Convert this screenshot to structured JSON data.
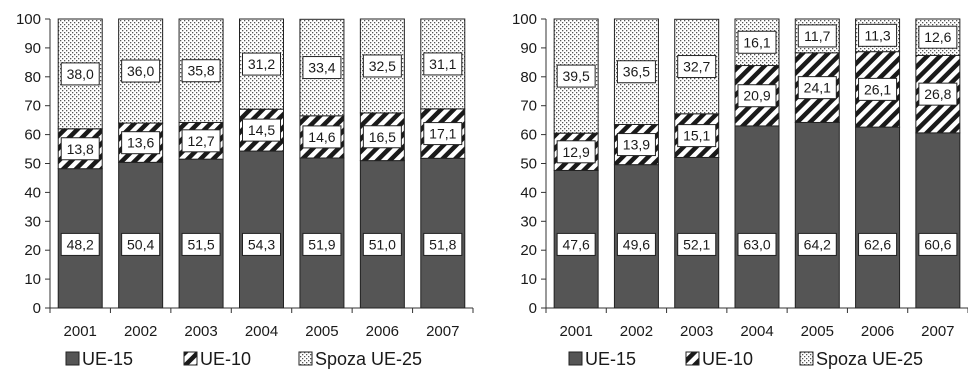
{
  "chart_data": [
    {
      "type": "bar",
      "stacked": true,
      "categories": [
        "2001",
        "2002",
        "2003",
        "2004",
        "2005",
        "2006",
        "2007"
      ],
      "series": [
        {
          "name": "UE-15",
          "values": [
            48.2,
            50.4,
            51.5,
            54.3,
            51.9,
            51.0,
            51.8
          ],
          "labels": [
            "48,2",
            "50,4",
            "51,5",
            "54,3",
            "51,9",
            "51,0",
            "51,8"
          ],
          "color": "#555555",
          "pattern": "solid"
        },
        {
          "name": "UE-10",
          "values": [
            13.8,
            13.6,
            12.7,
            14.5,
            14.6,
            16.5,
            17.1
          ],
          "labels": [
            "13,8",
            "13,6",
            "12,7",
            "14,5",
            "14,6",
            "16,5",
            "17,1"
          ],
          "color": "#1a1a1a",
          "pattern": "diagonal-hatch"
        },
        {
          "name": "Spoza UE-25",
          "values": [
            38.0,
            36.0,
            35.8,
            31.2,
            33.4,
            32.5,
            31.1
          ],
          "labels": [
            "38,0",
            "36,0",
            "35,8",
            "31,2",
            "33,4",
            "32,5",
            "31,1"
          ],
          "color": "#999999",
          "pattern": "dots"
        }
      ],
      "yticks": [
        "0",
        "10",
        "20",
        "30",
        "40",
        "50",
        "60",
        "70",
        "80",
        "90",
        "100"
      ],
      "ylim": [
        0,
        100
      ],
      "grid": false,
      "legend_position": "bottom"
    },
    {
      "type": "bar",
      "stacked": true,
      "categories": [
        "2001",
        "2002",
        "2003",
        "2004",
        "2005",
        "2006",
        "2007"
      ],
      "series": [
        {
          "name": "UE-15",
          "values": [
            47.6,
            49.6,
            52.1,
            63.0,
            64.2,
            62.6,
            60.6
          ],
          "labels": [
            "47,6",
            "49,6",
            "52,1",
            "63,0",
            "64,2",
            "62,6",
            "60,6"
          ],
          "color": "#555555",
          "pattern": "solid"
        },
        {
          "name": "UE-10",
          "values": [
            12.9,
            13.9,
            15.1,
            20.9,
            24.1,
            26.1,
            26.8
          ],
          "labels": [
            "12,9",
            "13,9",
            "15,1",
            "20,9",
            "24,1",
            "26,1",
            "26,8"
          ],
          "color": "#1a1a1a",
          "pattern": "diagonal-hatch"
        },
        {
          "name": "Spoza UE-25",
          "values": [
            39.5,
            36.5,
            32.7,
            16.1,
            11.7,
            11.3,
            12.6
          ],
          "labels": [
            "39,5",
            "36,5",
            "32,7",
            "16,1",
            "11,7",
            "11,3",
            "12,6"
          ],
          "color": "#999999",
          "pattern": "dots"
        }
      ],
      "yticks": [
        "0",
        "10",
        "20",
        "30",
        "40",
        "50",
        "60",
        "70",
        "80",
        "90",
        "100"
      ],
      "ylim": [
        0,
        100
      ],
      "grid": false,
      "legend_position": "bottom"
    }
  ],
  "legend": {
    "items": [
      {
        "name": "UE-15",
        "pattern": "solid"
      },
      {
        "name": "UE-10",
        "pattern": "diagonal-hatch"
      },
      {
        "name": "Spoza UE-25",
        "pattern": "dots"
      }
    ]
  }
}
